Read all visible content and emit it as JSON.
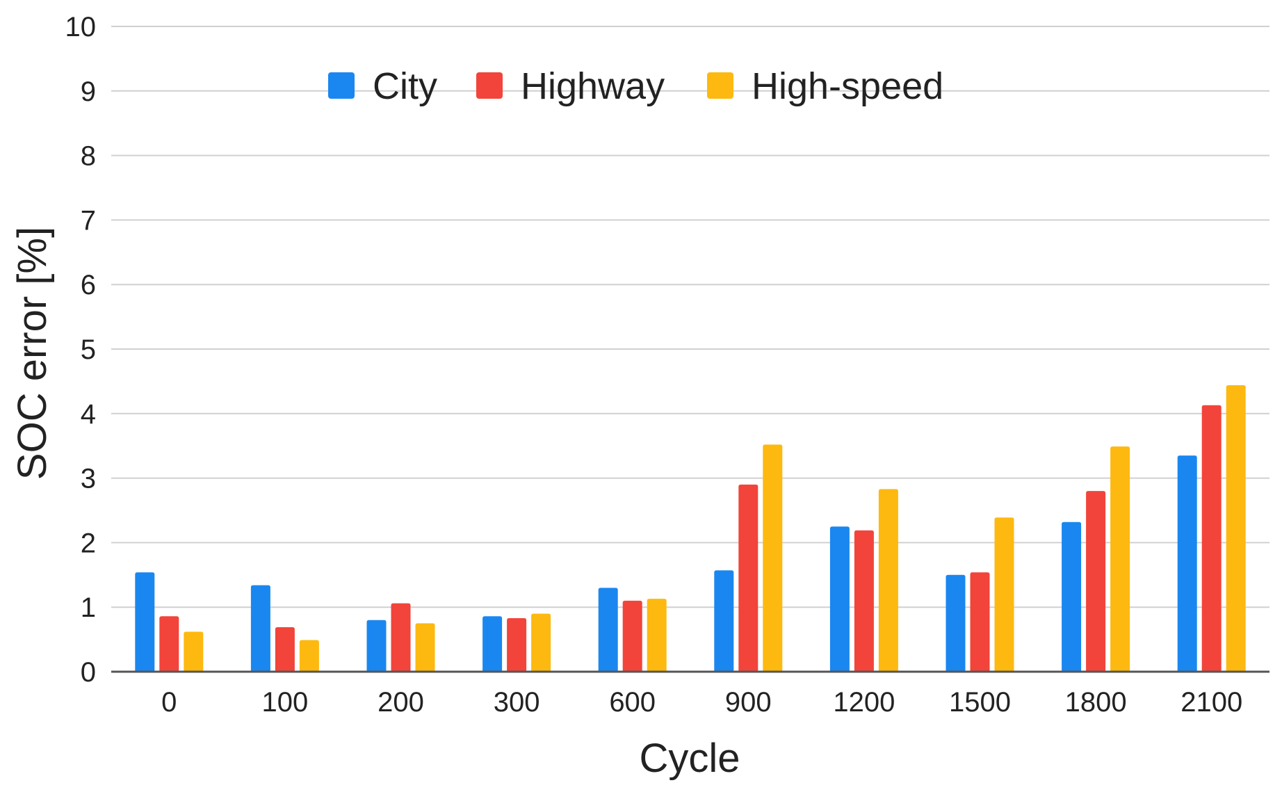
{
  "chart_data": {
    "type": "bar",
    "title": "",
    "xlabel": "Cycle",
    "ylabel": "SOC error [%]",
    "ylim": [
      0,
      10
    ],
    "yticks": [
      "0",
      "1",
      "2",
      "3",
      "4",
      "5",
      "6",
      "7",
      "8",
      "9",
      "10"
    ],
    "grid": true,
    "legend_position": "top-center",
    "categories": [
      "0",
      "100",
      "200",
      "300",
      "600",
      "900",
      "1200",
      "1500",
      "1800",
      "2100"
    ],
    "series": [
      {
        "name": "City",
        "color": "#1a87f0",
        "values": [
          1.54,
          1.34,
          0.8,
          0.86,
          1.3,
          1.57,
          2.25,
          1.5,
          2.32,
          3.35
        ]
      },
      {
        "name": "Highway",
        "color": "#f2443a",
        "values": [
          0.86,
          0.69,
          1.06,
          0.83,
          1.1,
          2.9,
          2.19,
          1.54,
          2.8,
          4.13
        ]
      },
      {
        "name": "High-speed",
        "color": "#fdb90f",
        "values": [
          0.62,
          0.49,
          0.75,
          0.9,
          1.13,
          3.52,
          2.83,
          2.39,
          3.49,
          4.44
        ]
      }
    ]
  }
}
